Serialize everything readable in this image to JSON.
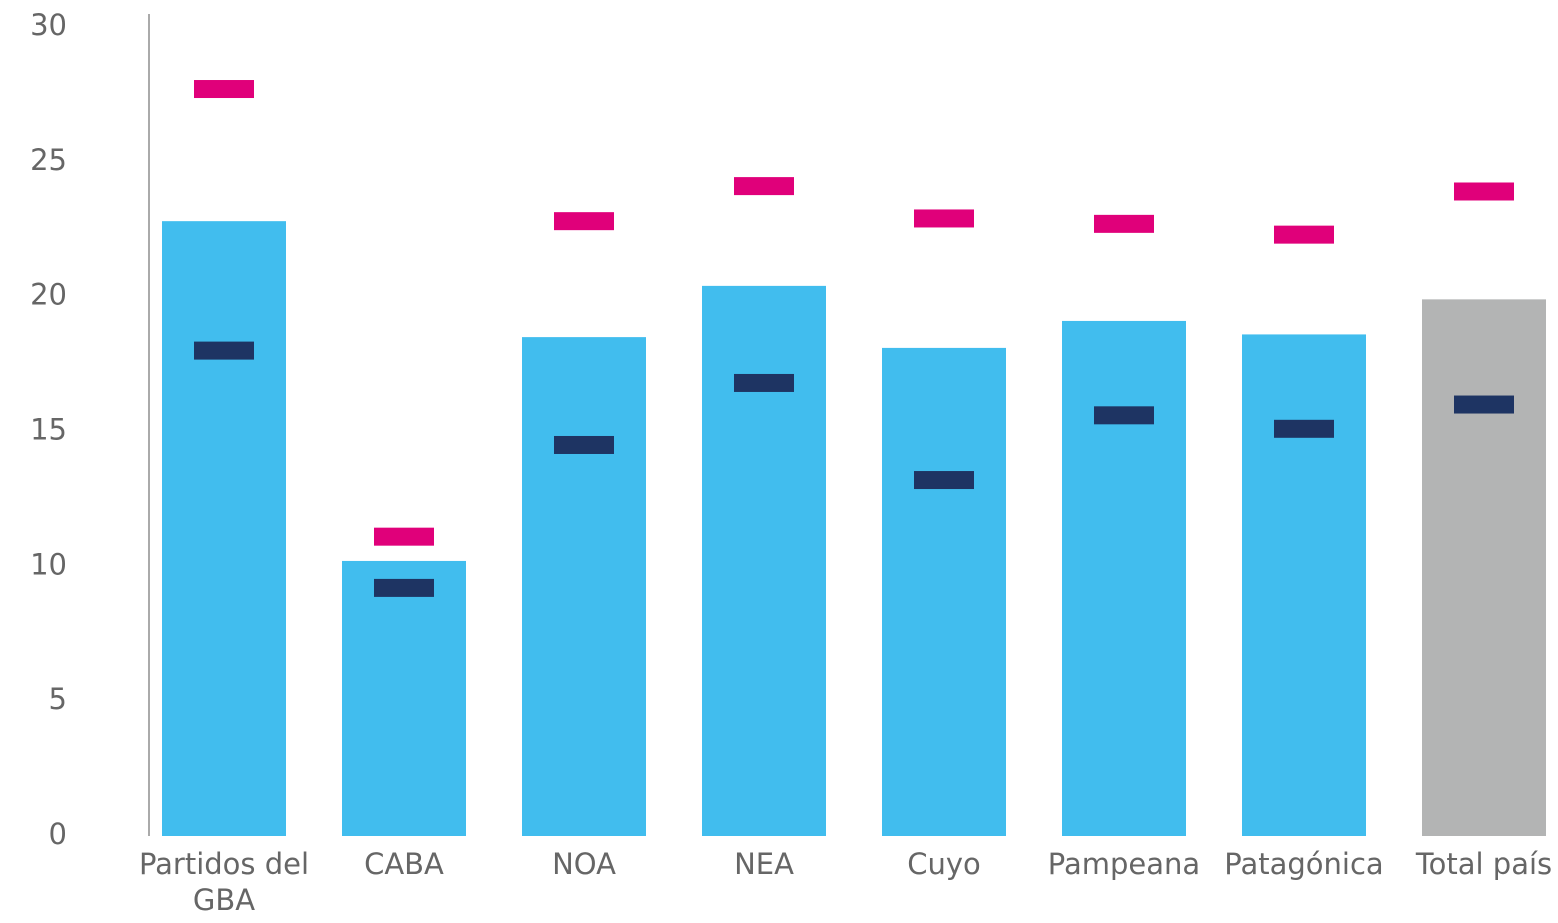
{
  "chart_data": {
    "type": "bar",
    "categories": [
      "Partidos del GBA",
      "CABA",
      "NOA",
      "NEA",
      "Cuyo",
      "Pampeana",
      "Patagónica",
      "Total país"
    ],
    "values": [
      22.8,
      10.2,
      18.5,
      20.4,
      18.1,
      19.1,
      18.6,
      19.9
    ],
    "colors": [
      "#41bdee",
      "#41bdee",
      "#41bdee",
      "#41bdee",
      "#41bdee",
      "#41bdee",
      "#41bdee",
      "#b3b4b4"
    ],
    "series": [
      {
        "color": "#e0007a",
        "values": [
          27.7,
          11.1,
          22.8,
          24.1,
          22.9,
          22.7,
          22.3,
          23.9
        ]
      },
      {
        "color": "#1e3463",
        "values": [
          18.0,
          9.2,
          14.5,
          16.8,
          13.2,
          15.6,
          15.1,
          16.0
        ]
      }
    ],
    "ylim": [
      0,
      30
    ],
    "yticks": [
      0,
      5,
      10,
      15,
      20,
      25,
      30
    ],
    "grid": false
  }
}
